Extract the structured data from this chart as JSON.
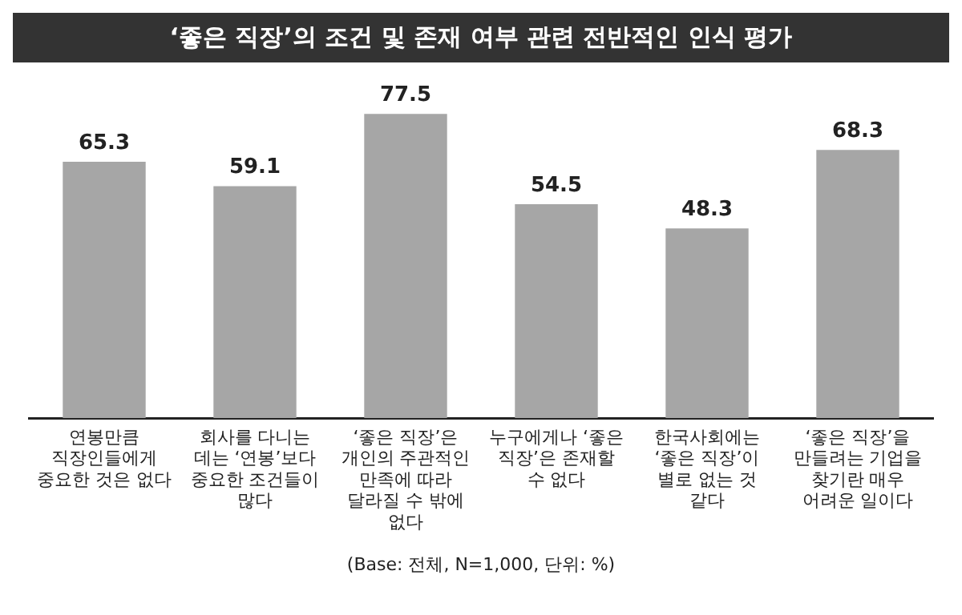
{
  "chart_data": {
    "type": "bar",
    "title": "‘좋은 직장’의 조건 및 존재 여부 관련 전반적인 인식 평가",
    "categories": [
      "연봉만큼 직장인들에게 중요한 것은 없다",
      "회사를 다니는 데는 ‘연봉’보다 중요한 조건들이 많다",
      "‘좋은 직장’은 개인의 주관적인 만족에 따라 달라질 수 밖에 없다",
      "누구에게나 ‘좋은 직장’은 존재할 수 없다",
      "한국사회에는 ‘좋은 직장’이 별로 없는 것 같다",
      "‘좋은 직장’을 만들려는 기업을 찾기란 매우 어려운 일이다"
    ],
    "values": [
      65.3,
      59.1,
      77.5,
      54.5,
      48.3,
      68.3
    ],
    "color": "#a6a6a6",
    "data_labels": true,
    "grid": false,
    "legend": false,
    "annotations": [
      "(Base: 전체, N=1,000, 단위: %)"
    ]
  }
}
